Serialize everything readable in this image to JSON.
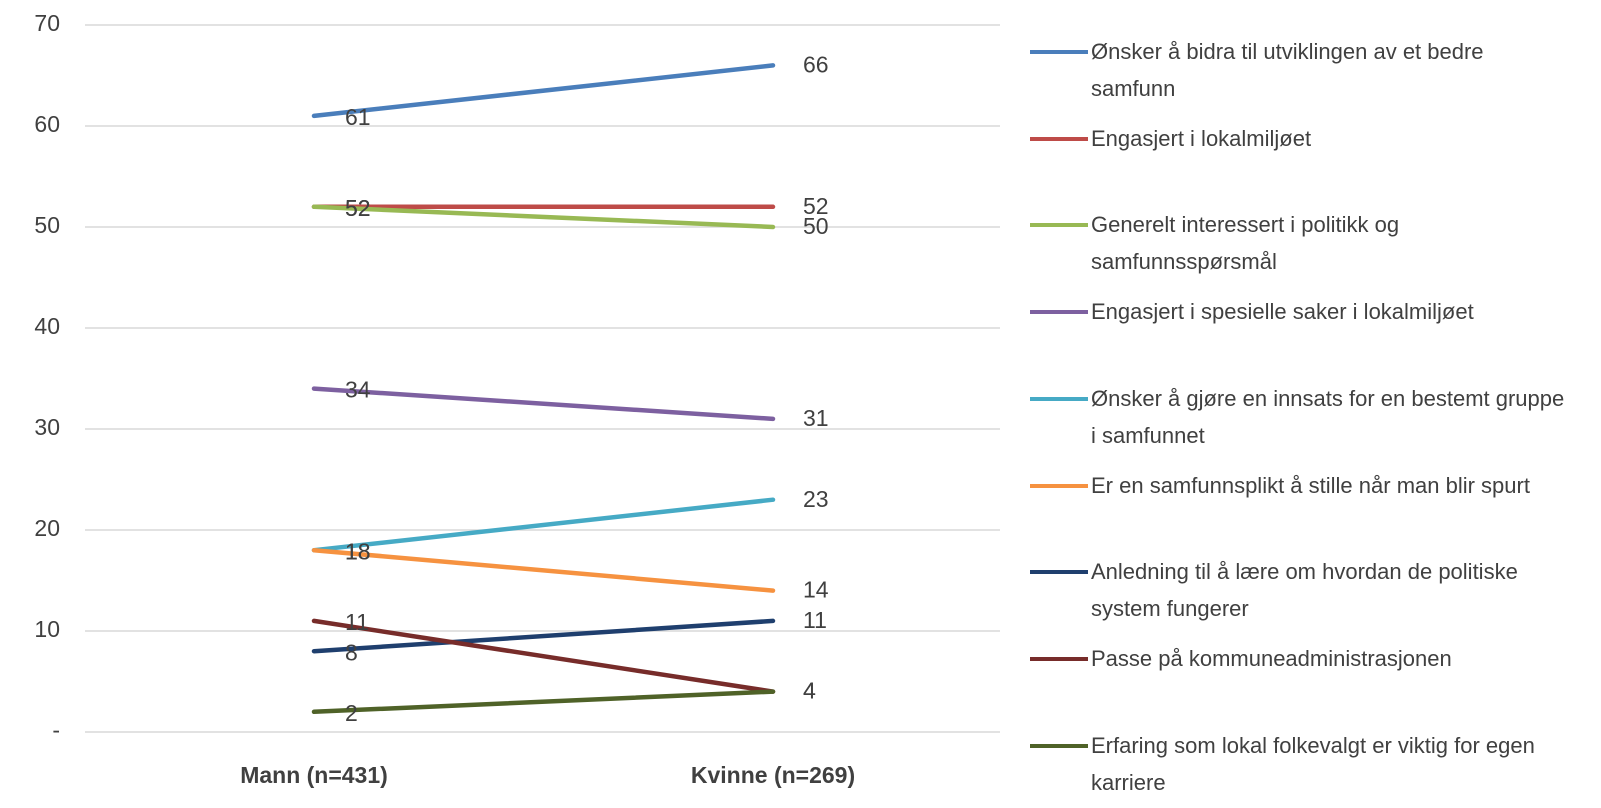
{
  "chart_data": {
    "type": "line",
    "categories": [
      "Mann (n=431)",
      "Kvinne (n=269)"
    ],
    "ylim": [
      0,
      70
    ],
    "yticks": [
      {
        "value": 0,
        "label": "-"
      },
      10,
      20,
      30,
      40,
      50,
      60,
      70
    ],
    "grid": true,
    "legend": "right",
    "series": [
      {
        "name": "Ønsker å bidra til utviklingen av et bedre samfunn",
        "color": "#4a7ebb",
        "values": [
          61,
          66
        ]
      },
      {
        "name": "Engasjert i lokalmiljøet",
        "color": "#be4b48",
        "values": [
          52,
          52
        ]
      },
      {
        "name": "Generelt interessert i politikk og samfunnsspørsmål",
        "color": "#98b954",
        "values": [
          52,
          50
        ]
      },
      {
        "name": "Engasjert i spesielle saker i lokalmiljøet",
        "color": "#7d60a0",
        "values": [
          34,
          31
        ]
      },
      {
        "name": "Ønsker å gjøre en innsats for en bestemt gruppe i samfunnet",
        "color": "#46aac5",
        "values": [
          18,
          23
        ]
      },
      {
        "name": "Er en samfunnsplikt å stille når man blir spurt",
        "color": "#f69240",
        "values": [
          18,
          14
        ]
      },
      {
        "name": "Anledning til å lære om hvordan de politiske system fungerer",
        "color": "#1f3f6e",
        "values": [
          8,
          11
        ]
      },
      {
        "name": "Passe på kommuneadministrasjonen",
        "color": "#772c2a",
        "values": [
          11,
          4
        ]
      },
      {
        "name": "Erfaring som lokal folkevalgt er viktig for egen karriere",
        "color": "#4f6228",
        "values": [
          2,
          4
        ]
      }
    ]
  }
}
